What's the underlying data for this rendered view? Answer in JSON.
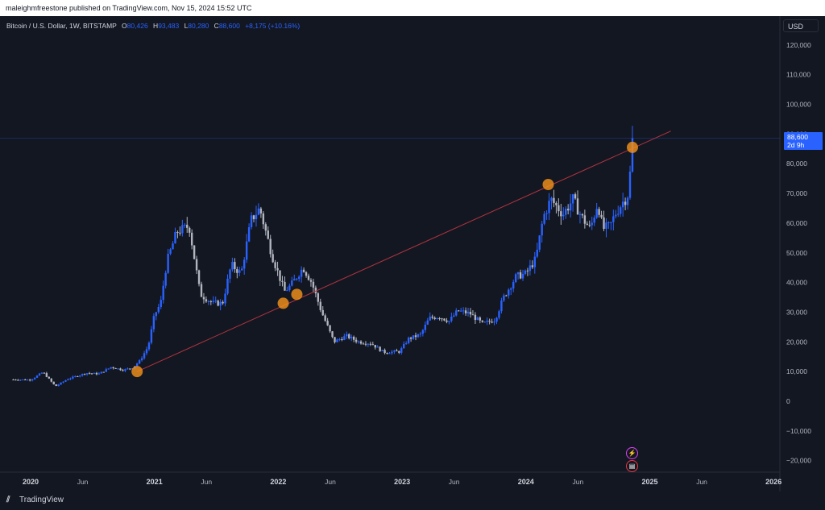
{
  "topbar": {
    "published": "maleighmfreestone published on TradingView.com, Nov 15, 2024 15:52 UTC"
  },
  "legend": {
    "symbol": "Bitcoin / U.S. Dollar, 1W, BITSTAMP",
    "o_label": "O",
    "o_value": "80,426",
    "h_label": "H",
    "h_value": "93,483",
    "l_label": "L",
    "l_value": "80,280",
    "c_label": "C",
    "c_value": "88,600",
    "change": "+8,175 (+10.16%)"
  },
  "axis": {
    "currency": "USD"
  },
  "price_badge": {
    "price": "88,600",
    "countdown": "2d 9h"
  },
  "footer": {
    "brand": "TradingView",
    "logo_icon": "tradingview-logo-icon"
  },
  "colors": {
    "background": "#131722",
    "up": "#2962ff",
    "down": "#b2b5be",
    "trendline": "#b2343f",
    "touch_marker": "#f7931a"
  },
  "chart_data": {
    "type": "candlestick",
    "interval": "1W",
    "ylim": [
      -25000,
      125000
    ],
    "y_ticks": [
      -20000,
      -10000,
      0,
      10000,
      20000,
      30000,
      40000,
      50000,
      60000,
      70000,
      80000,
      90000,
      100000,
      110000,
      120000
    ],
    "y_tick_labels": [
      "−20,000",
      "−10,000",
      "0",
      "10,000",
      "20,000",
      "30,000",
      "40,000",
      "50,000",
      "60,000",
      "70,000",
      "80,000",
      "90,000",
      "100,000",
      "110,000",
      "120,000"
    ],
    "x_range": [
      2019.86,
      2026.09
    ],
    "x_ticks": [
      {
        "t": 2020.0,
        "label": "2020",
        "major": true
      },
      {
        "t": 2020.42,
        "label": "Jun",
        "major": false
      },
      {
        "t": 2021.0,
        "label": "2021",
        "major": true
      },
      {
        "t": 2021.42,
        "label": "Jun",
        "major": false
      },
      {
        "t": 2022.0,
        "label": "2022",
        "major": true
      },
      {
        "t": 2022.42,
        "label": "Jun",
        "major": false
      },
      {
        "t": 2023.0,
        "label": "2023",
        "major": true
      },
      {
        "t": 2023.42,
        "label": "Jun",
        "major": false
      },
      {
        "t": 2024.0,
        "label": "2024",
        "major": true
      },
      {
        "t": 2024.42,
        "label": "Jun",
        "major": false
      },
      {
        "t": 2025.0,
        "label": "2025",
        "major": true
      },
      {
        "t": 2025.42,
        "label": "Jun",
        "major": false
      },
      {
        "t": 2026.0,
        "label": "2026",
        "major": true
      }
    ],
    "last_price": 88600,
    "trendline": {
      "start": [
        2020.86,
        10000
      ],
      "end": [
        2025.17,
        91000
      ]
    },
    "touch_points": [
      {
        "t": 2020.86,
        "y": 10000
      },
      {
        "t": 2022.04,
        "y": 33000
      },
      {
        "t": 2022.15,
        "y": 36000
      },
      {
        "t": 2024.18,
        "y": 73000
      },
      {
        "t": 2024.86,
        "y": 85500
      }
    ],
    "price_path": [
      [
        2019.86,
        7300
      ],
      [
        2020.0,
        7200
      ],
      [
        2020.1,
        9800
      ],
      [
        2020.2,
        5000
      ],
      [
        2020.3,
        7500
      ],
      [
        2020.45,
        9500
      ],
      [
        2020.55,
        9200
      ],
      [
        2020.65,
        11500
      ],
      [
        2020.75,
        10500
      ],
      [
        2020.82,
        11300
      ],
      [
        2020.88,
        13500
      ],
      [
        2020.95,
        18500
      ],
      [
        2021.0,
        29000
      ],
      [
        2021.05,
        33000
      ],
      [
        2021.1,
        47000
      ],
      [
        2021.18,
        57000
      ],
      [
        2021.28,
        59000
      ],
      [
        2021.37,
        36000
      ],
      [
        2021.47,
        33000
      ],
      [
        2021.55,
        33000
      ],
      [
        2021.62,
        46000
      ],
      [
        2021.7,
        43000
      ],
      [
        2021.78,
        61000
      ],
      [
        2021.85,
        65000
      ],
      [
        2021.95,
        49000
      ],
      [
        2022.0,
        43000
      ],
      [
        2022.05,
        37000
      ],
      [
        2022.1,
        39000
      ],
      [
        2022.2,
        45000
      ],
      [
        2022.27,
        40000
      ],
      [
        2022.35,
        30000
      ],
      [
        2022.45,
        20000
      ],
      [
        2022.55,
        22000
      ],
      [
        2022.65,
        20000
      ],
      [
        2022.75,
        19500
      ],
      [
        2022.85,
        16500
      ],
      [
        2022.98,
        16700
      ],
      [
        2023.05,
        21000
      ],
      [
        2023.15,
        22500
      ],
      [
        2023.22,
        28000
      ],
      [
        2023.3,
        28500
      ],
      [
        2023.38,
        27000
      ],
      [
        2023.45,
        30500
      ],
      [
        2023.55,
        29500
      ],
      [
        2023.65,
        26000
      ],
      [
        2023.75,
        27500
      ],
      [
        2023.82,
        35000
      ],
      [
        2023.92,
        42000
      ],
      [
        2024.0,
        43000
      ],
      [
        2024.08,
        48000
      ],
      [
        2024.14,
        62000
      ],
      [
        2024.2,
        68000
      ],
      [
        2024.3,
        63000
      ],
      [
        2024.38,
        68000
      ],
      [
        2024.45,
        62000
      ],
      [
        2024.52,
        58000
      ],
      [
        2024.58,
        67000
      ],
      [
        2024.62,
        58000
      ],
      [
        2024.68,
        59000
      ],
      [
        2024.72,
        63000
      ],
      [
        2024.78,
        67000
      ],
      [
        2024.82,
        69000
      ],
      [
        2024.85,
        80000
      ],
      [
        2024.87,
        88600
      ]
    ]
  }
}
